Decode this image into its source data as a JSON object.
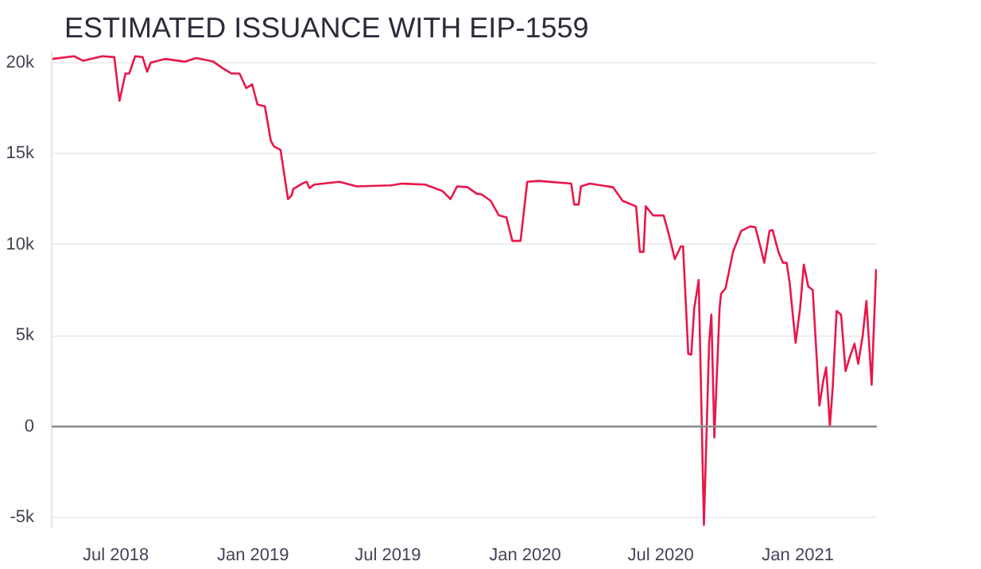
{
  "chart_data": {
    "type": "line",
    "title": "ESTIMATED ISSUANCE WITH EIP-1559",
    "x": [
      "2018-04-07",
      "2018-05-06",
      "2018-05-18",
      "2018-06-13",
      "2018-06-29",
      "2018-07-06",
      "2018-07-14",
      "2018-07-19",
      "2018-07-27",
      "2018-08-06",
      "2018-08-12",
      "2018-08-17",
      "2018-09-05",
      "2018-10-02",
      "2018-10-17",
      "2018-11-09",
      "2018-11-21",
      "2018-12-03",
      "2018-12-14",
      "2018-12-23",
      "2018-12-31",
      "2019-01-07",
      "2019-01-17",
      "2019-01-25",
      "2019-01-29",
      "2019-02-07",
      "2019-02-17",
      "2019-02-22",
      "2019-02-24",
      "2019-03-08",
      "2019-03-14",
      "2019-03-18",
      "2019-03-24",
      "2019-04-27",
      "2019-05-20",
      "2019-07-05",
      "2019-07-20",
      "2019-08-20",
      "2019-09-12",
      "2019-09-23",
      "2019-10-02",
      "2019-10-16",
      "2019-10-28",
      "2019-11-04",
      "2019-11-16",
      "2019-11-27",
      "2019-12-07",
      "2019-12-15",
      "2019-12-26",
      "2020-01-04",
      "2020-01-19",
      "2020-03-03",
      "2020-03-07",
      "2020-03-13",
      "2020-03-16",
      "2020-03-28",
      "2020-04-28",
      "2020-05-11",
      "2020-05-29",
      "2020-06-03",
      "2020-06-08",
      "2020-06-11",
      "2020-06-21",
      "2020-07-05",
      "2020-07-12",
      "2020-07-20",
      "2020-07-28",
      "2020-07-31",
      "2020-08-07",
      "2020-08-11",
      "2020-08-15",
      "2020-08-21",
      "2020-08-28",
      "2020-09-04",
      "2020-09-07",
      "2020-09-11",
      "2020-09-18",
      "2020-09-20",
      "2020-09-26",
      "2020-10-06",
      "2020-10-17",
      "2020-10-29",
      "2020-11-05",
      "2020-11-11",
      "2020-11-17",
      "2020-11-24",
      "2020-11-28",
      "2020-12-06",
      "2020-12-12",
      "2020-12-17",
      "2020-12-21",
      "2020-12-29",
      "2021-01-04",
      "2021-01-09",
      "2021-01-15",
      "2021-01-21",
      "2021-01-30",
      "2021-02-04",
      "2021-02-08",
      "2021-02-13",
      "2021-02-17",
      "2021-02-22",
      "2021-02-28",
      "2021-03-06",
      "2021-03-12",
      "2021-03-18",
      "2021-03-23",
      "2021-03-29",
      "2021-04-03",
      "2021-04-10",
      "2021-04-16"
    ],
    "series": [
      {
        "color": "#e8174a",
        "values": [
          20200,
          20350,
          20100,
          20350,
          20300,
          17900,
          19400,
          19400,
          20350,
          20300,
          19500,
          20000,
          20200,
          20050,
          20250,
          20050,
          19700,
          19400,
          19400,
          18600,
          18800,
          17700,
          17600,
          15700,
          15400,
          15200,
          12500,
          12700,
          13050,
          13350,
          13450,
          13100,
          13300,
          13450,
          13200,
          13250,
          13350,
          13300,
          12950,
          12500,
          13200,
          13150,
          12800,
          12750,
          12400,
          11600,
          11500,
          10200,
          10200,
          13450,
          13500,
          13350,
          12200,
          12200,
          13200,
          13350,
          13150,
          12400,
          12100,
          9600,
          9600,
          12100,
          11600,
          11600,
          10550,
          9200,
          9900,
          9900,
          4000,
          3950,
          6500,
          8050,
          -5400,
          4600,
          6150,
          -600,
          6500,
          7300,
          7600,
          9600,
          10750,
          11000,
          10950,
          10000,
          9000,
          10750,
          10800,
          9600,
          9000,
          9000,
          7900,
          4600,
          6500,
          8900,
          7700,
          7500,
          1150,
          2500,
          3250,
          0,
          2300,
          6350,
          6150,
          3050,
          3850,
          4550,
          3450,
          5000,
          6900,
          2300,
          8650
        ]
      }
    ],
    "xlim": [
      "2018-04-06",
      "2021-04-17"
    ],
    "xticks": [
      {
        "value": "2018-07-01",
        "label": "Jul 2018"
      },
      {
        "value": "2019-01-01",
        "label": "Jan 2019"
      },
      {
        "value": "2019-07-01",
        "label": "Jul 2019"
      },
      {
        "value": "2020-01-01",
        "label": "Jan 2020"
      },
      {
        "value": "2020-07-01",
        "label": "Jul 2020"
      },
      {
        "value": "2021-01-01",
        "label": "Jan 2021"
      }
    ],
    "ylim": [
      -5600,
      20600
    ],
    "yticks": [
      {
        "value": -5000,
        "label": "-5k"
      },
      0,
      {
        "value": 5000,
        "label": "5k"
      },
      {
        "value": 10000,
        "label": "10k"
      },
      {
        "value": 15000,
        "label": "15k"
      },
      {
        "value": 20000,
        "label": "20k"
      }
    ],
    "grid": "y",
    "ref_lines": [
      {
        "axis": "y",
        "value": 0,
        "color": "#8c8c8c"
      }
    ]
  }
}
